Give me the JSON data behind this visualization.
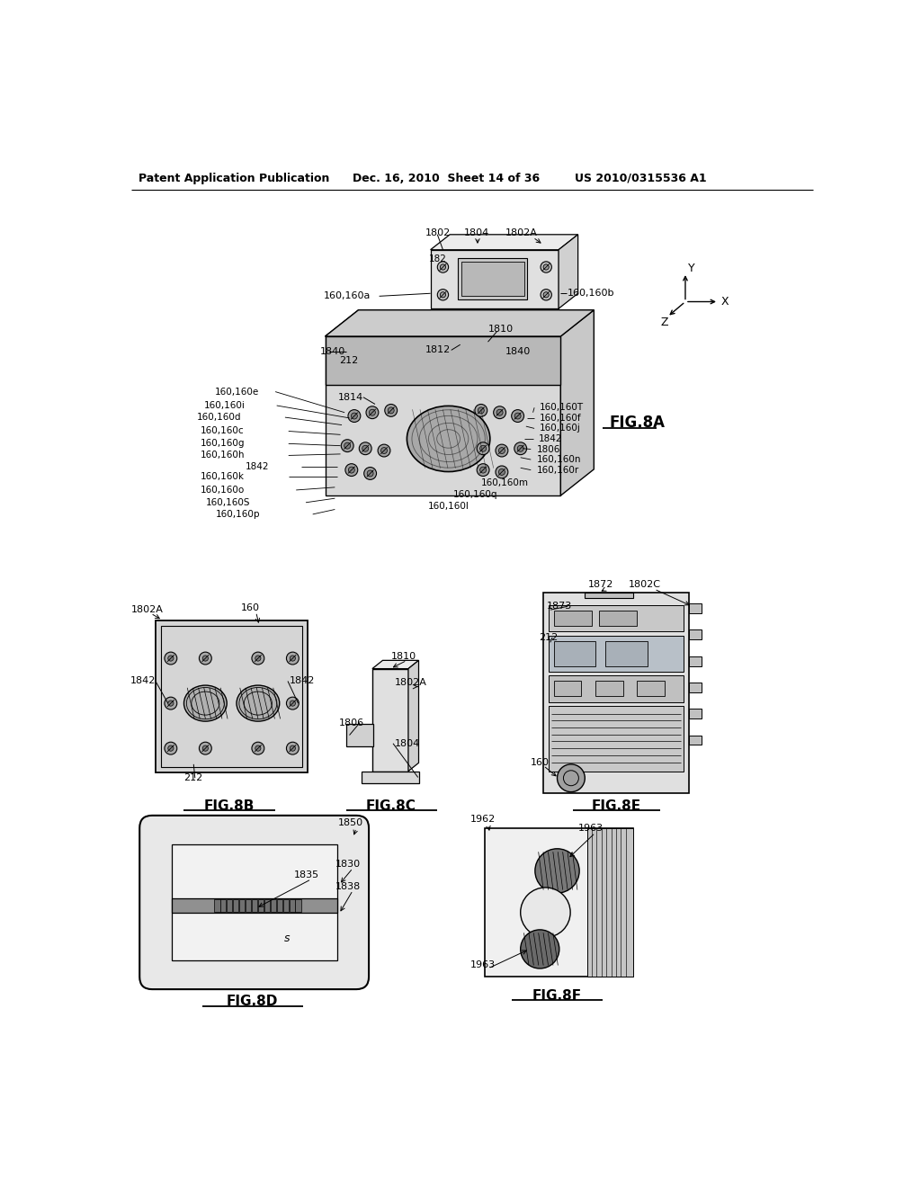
{
  "bg_color": "#ffffff",
  "header_left": "Patent Application Publication",
  "header_mid": "Dec. 16, 2010  Sheet 14 of 36",
  "header_right": "US 2010/0315536 A1"
}
